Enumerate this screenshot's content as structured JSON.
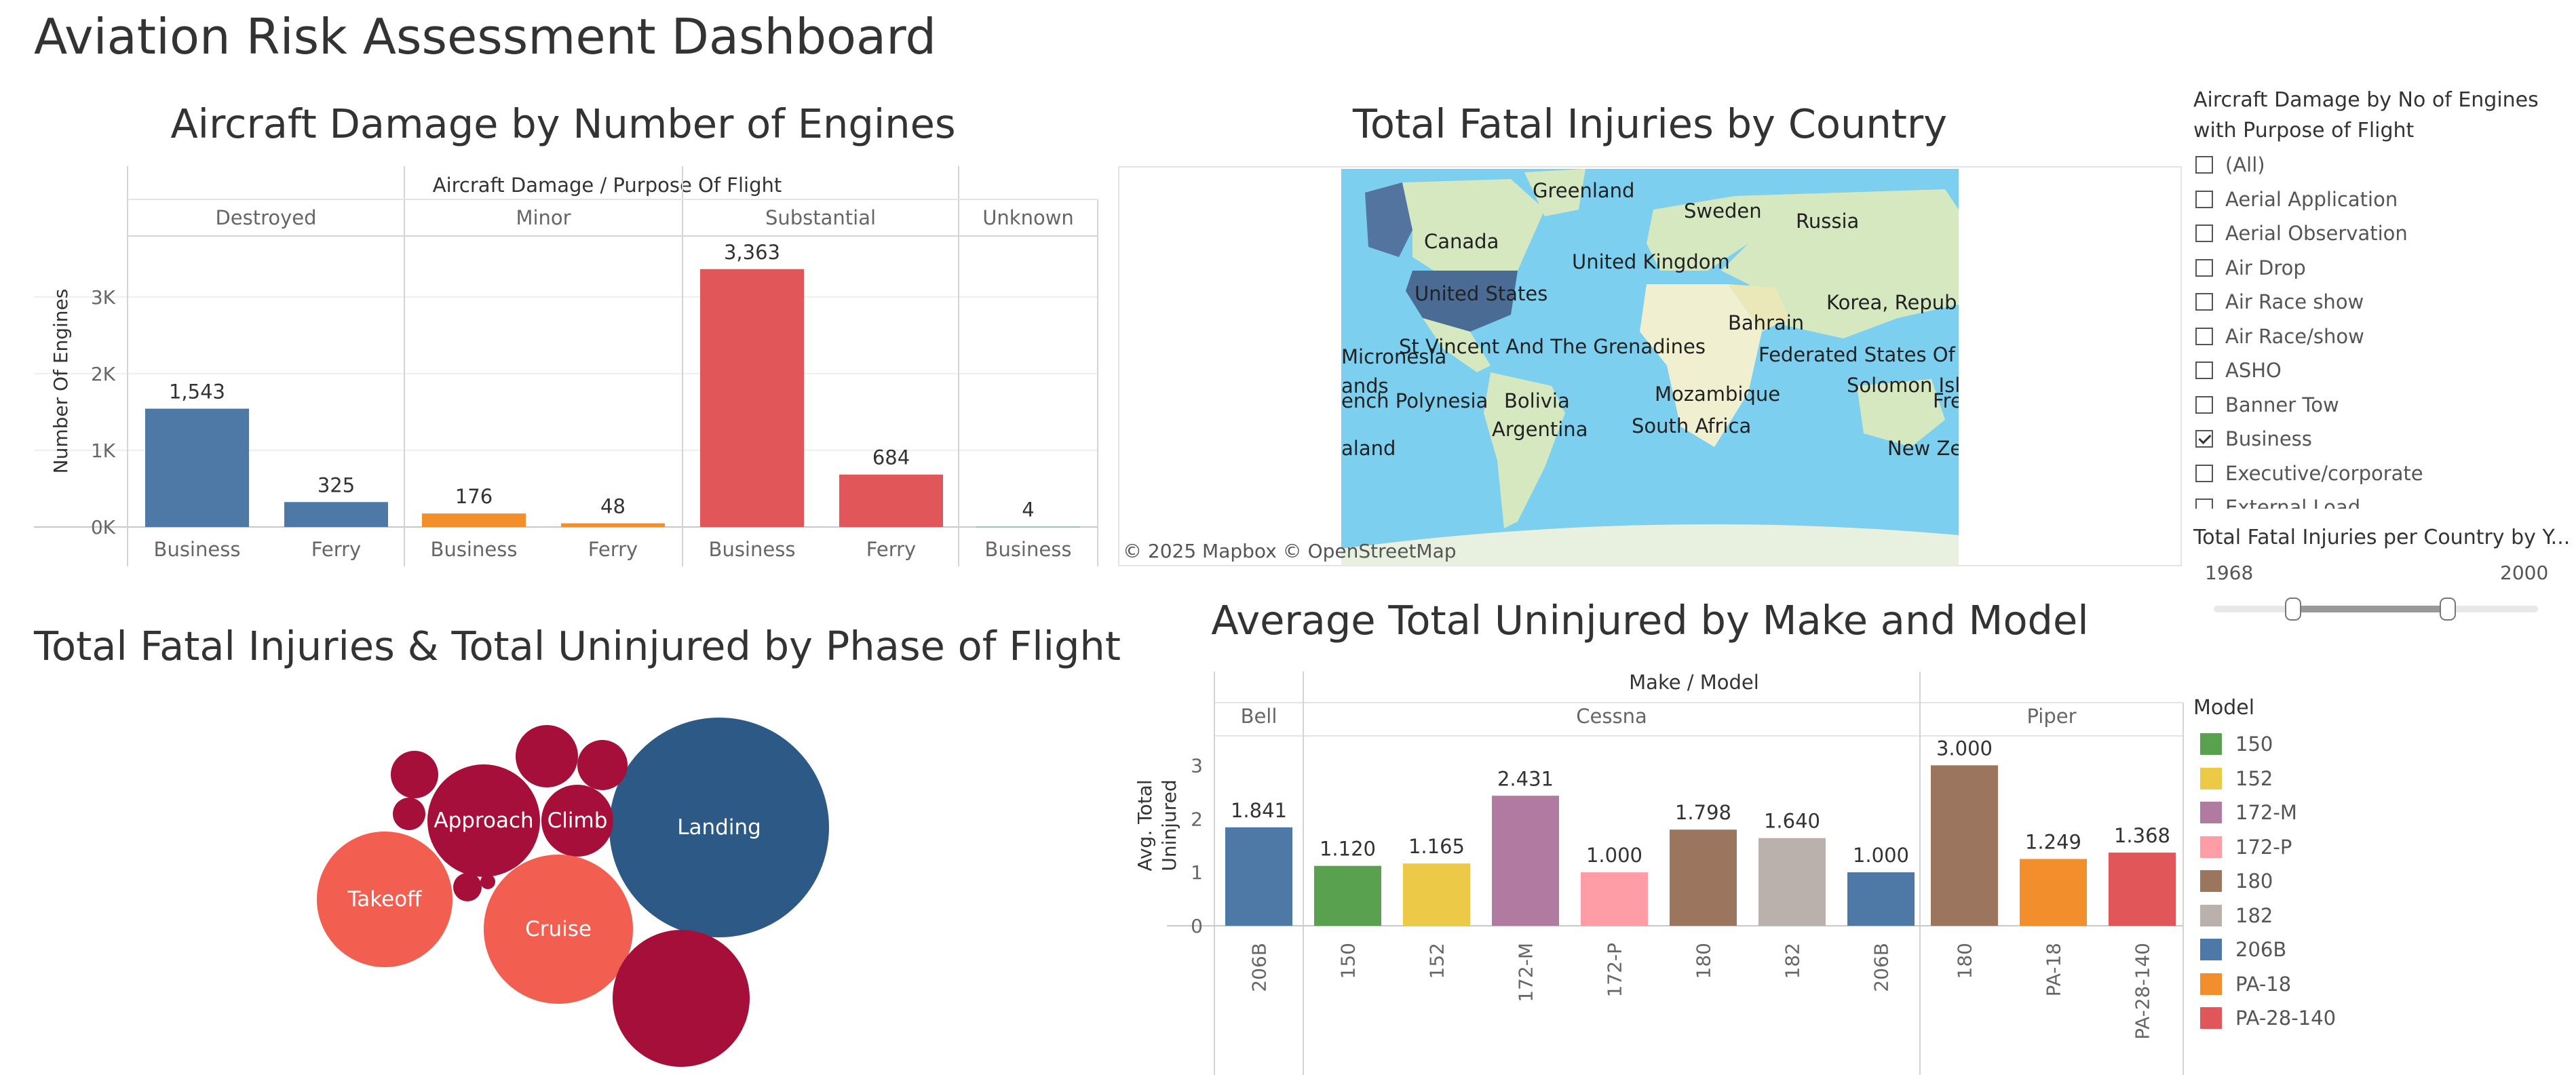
{
  "dashboard_title": "Aviation Risk Assessment Dashboard",
  "colors": {
    "business": "#4e79a7",
    "minor": "#f28e2b",
    "substantial": "#e15759",
    "bubble_dark": "#a50f3a",
    "bubble_light": "#f25f50",
    "bubble_blue": "#2c5985",
    "map_water": "#7ccfef",
    "map_land": "#d6e8c0"
  },
  "engines_chart": {
    "title": "Aircraft Damage by Number of Engines",
    "column_header": "Aircraft Damage / Purpose Of Flight",
    "ylabel": "Number Of Engines"
  },
  "map_panel": {
    "title": "Total Fatal Injuries by Country",
    "attribution": "© 2025 Mapbox  © OpenStreetMap",
    "labels": [
      "Greenland",
      "Sweden",
      "Russia",
      "Canada",
      "United Kingdom",
      "United States",
      "Korea, Republic Of",
      "Bahrain",
      "Micronesia",
      "St Vincent And The Grenadines",
      "Federated States Of",
      "Solomon Isl",
      "ands",
      "ench Polynesia",
      "Bolivia",
      "Mozambique",
      "Fre",
      "Argentina",
      "South Africa",
      "New Ze",
      "aland"
    ]
  },
  "bubble_chart": {
    "title": "Total Fatal Injuries & Total Uninjured by Phase of Flight",
    "labels": {
      "landing": "Landing",
      "approach": "Approach",
      "climb": "Climb",
      "takeoff": "Takeoff",
      "cruise": "Cruise"
    }
  },
  "make_model_chart": {
    "title": "Average Total Uninjured by Make and Model",
    "column_header": "Make / Model",
    "ylabel_line1": "Avg. Total",
    "ylabel_line2": "Uninjured"
  },
  "filter": {
    "title": "Aircraft Damage by No of Engines with Purpose of Flight",
    "items": [
      {
        "label": "(All)",
        "checked": false
      },
      {
        "label": "Aerial Application",
        "checked": false
      },
      {
        "label": "Aerial Observation",
        "checked": false
      },
      {
        "label": "Air Drop",
        "checked": false
      },
      {
        "label": "Air Race show",
        "checked": false
      },
      {
        "label": "Air Race/show",
        "checked": false
      },
      {
        "label": "ASHO",
        "checked": false
      },
      {
        "label": "Banner Tow",
        "checked": false
      },
      {
        "label": "Business",
        "checked": true
      },
      {
        "label": "Executive/corporate",
        "checked": false
      },
      {
        "label": "External Load",
        "checked": false
      }
    ]
  },
  "year_slider": {
    "title": "Total Fatal Injuries per Country by Y...",
    "min_label": "1968",
    "max_label": "2000"
  },
  "legend": {
    "title": "Model",
    "items": [
      {
        "label": "150",
        "color": "#59a14f"
      },
      {
        "label": "152",
        "color": "#edc948"
      },
      {
        "label": "172-M",
        "color": "#b07aa1"
      },
      {
        "label": "172-P",
        "color": "#ff9da7"
      },
      {
        "label": "180",
        "color": "#9c755f"
      },
      {
        "label": "182",
        "color": "#bab0ac"
      },
      {
        "label": "206B",
        "color": "#4e79a7"
      },
      {
        "label": "PA-18",
        "color": "#f28e2b"
      },
      {
        "label": "PA-28-140",
        "color": "#e15759"
      }
    ]
  },
  "chart_data": [
    {
      "type": "bar",
      "title": "Aircraft Damage by Number of Engines",
      "column_header": "Aircraft Damage / Purpose Of Flight",
      "ylabel": "Number Of Engines",
      "ylim": [
        0,
        3750
      ],
      "yticks": [
        {
          "v": 0,
          "label": "0K"
        },
        {
          "v": 1000,
          "label": "1K"
        },
        {
          "v": 2000,
          "label": "2K"
        },
        {
          "v": 3000,
          "label": "3K"
        }
      ],
      "groups": [
        {
          "name": "Destroyed",
          "color": "#4e79a7",
          "bars": [
            {
              "category": "Business",
              "value": 1543,
              "label": "1,543"
            },
            {
              "category": "Ferry",
              "value": 325,
              "label": "325"
            }
          ]
        },
        {
          "name": "Minor",
          "color": "#f28e2b",
          "bars": [
            {
              "category": "Business",
              "value": 176,
              "label": "176"
            },
            {
              "category": "Ferry",
              "value": 48,
              "label": "48"
            }
          ]
        },
        {
          "name": "Substantial",
          "color": "#e15759",
          "bars": [
            {
              "category": "Business",
              "value": 3363,
              "label": "3,363"
            },
            {
              "category": "Ferry",
              "value": 684,
              "label": "684"
            }
          ]
        },
        {
          "name": "Unknown",
          "color": "#76b7b2",
          "bars": [
            {
              "category": "Business",
              "value": 4,
              "label": "4"
            }
          ]
        }
      ]
    },
    {
      "type": "bar",
      "title": "Average Total Uninjured by Make and Model",
      "column_header": "Make / Model",
      "ylabel": "Avg. Total Uninjured",
      "ylim": [
        0,
        3.55
      ],
      "yticks": [
        {
          "v": 0,
          "label": "0"
        },
        {
          "v": 1,
          "label": "1"
        },
        {
          "v": 2,
          "label": "2"
        },
        {
          "v": 3,
          "label": "3"
        }
      ],
      "groups": [
        {
          "name": "Bell",
          "bars": [
            {
              "category": "206B",
              "value": 1.841,
              "label": "1.841",
              "color": "#4e79a7"
            }
          ]
        },
        {
          "name": "Cessna",
          "bars": [
            {
              "category": "150",
              "value": 1.12,
              "label": "1.120",
              "color": "#59a14f"
            },
            {
              "category": "152",
              "value": 1.165,
              "label": "1.165",
              "color": "#edc948"
            },
            {
              "category": "172-M",
              "value": 2.431,
              "label": "2.431",
              "color": "#b07aa1"
            },
            {
              "category": "172-P",
              "value": 1.0,
              "label": "1.000",
              "color": "#ff9da7"
            },
            {
              "category": "180",
              "value": 1.798,
              "label": "1.798",
              "color": "#9c755f"
            },
            {
              "category": "182",
              "value": 1.64,
              "label": "1.640",
              "color": "#bab0ac"
            },
            {
              "category": "206B",
              "value": 1.0,
              "label": "1.000",
              "color": "#4e79a7"
            }
          ]
        },
        {
          "name": "Piper",
          "bars": [
            {
              "category": "180",
              "value": 3.0,
              "label": "3.000",
              "color": "#9c755f"
            },
            {
              "category": "PA-18",
              "value": 1.249,
              "label": "1.249",
              "color": "#f28e2b"
            },
            {
              "category": "PA-28-140",
              "value": 1.368,
              "label": "1.368",
              "color": "#e15759"
            }
          ]
        }
      ]
    }
  ]
}
